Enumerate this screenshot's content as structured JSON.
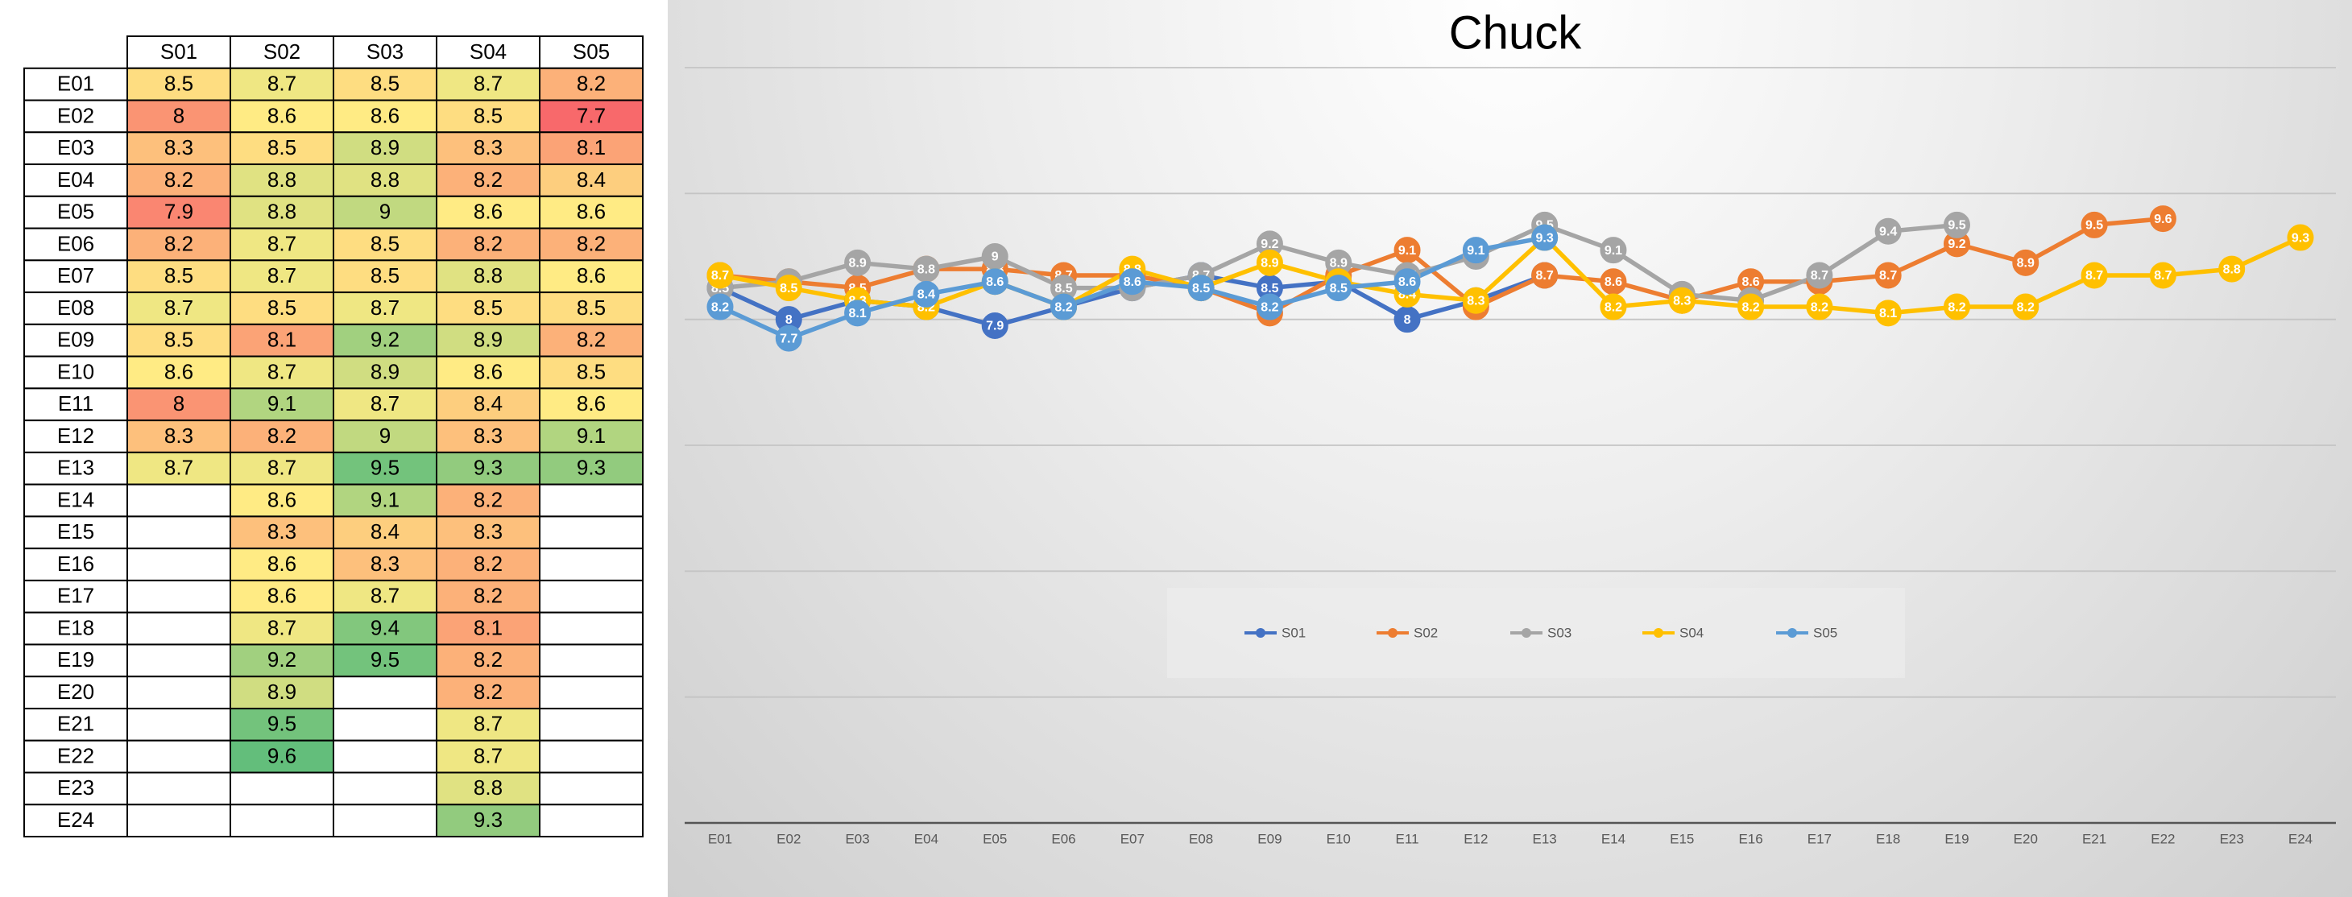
{
  "table": {
    "color_scale": [
      "#f8696b",
      "#ffeb84",
      "#63be7b"
    ]
  },
  "chart_data": {
    "type": "line",
    "title": "Chuck",
    "categories": [
      "E01",
      "E02",
      "E03",
      "E04",
      "E05",
      "E06",
      "E07",
      "E08",
      "E09",
      "E10",
      "E11",
      "E12",
      "E13",
      "E14",
      "E15",
      "E16",
      "E17",
      "E18",
      "E19",
      "E20",
      "E21",
      "E22",
      "E23",
      "E24"
    ],
    "series": [
      {
        "name": "S01",
        "color": "#4472c4",
        "values": [
          8.5,
          8,
          8.3,
          8.2,
          7.9,
          8.2,
          8.5,
          8.7,
          8.5,
          8.6,
          8,
          8.3,
          8.7,
          null,
          null,
          null,
          null,
          null,
          null,
          null,
          null,
          null,
          null,
          null
        ]
      },
      {
        "name": "S02",
        "color": "#ed7d31",
        "values": [
          8.7,
          8.6,
          8.5,
          8.8,
          8.8,
          8.7,
          8.7,
          8.5,
          8.1,
          8.7,
          9.1,
          8.2,
          8.7,
          8.6,
          8.3,
          8.6,
          8.6,
          8.7,
          9.2,
          8.9,
          9.5,
          9.6,
          null,
          null
        ]
      },
      {
        "name": "S03",
        "color": "#a5a5a5",
        "values": [
          8.5,
          8.6,
          8.9,
          8.8,
          9,
          8.5,
          8.5,
          8.7,
          9.2,
          8.9,
          8.7,
          9,
          9.5,
          9.1,
          8.4,
          8.3,
          8.7,
          9.4,
          9.5,
          null,
          null,
          null,
          null,
          null
        ]
      },
      {
        "name": "S04",
        "color": "#ffc000",
        "values": [
          8.7,
          8.5,
          8.3,
          8.2,
          8.6,
          8.2,
          8.8,
          8.5,
          8.9,
          8.6,
          8.4,
          8.3,
          9.3,
          8.2,
          8.3,
          8.2,
          8.2,
          8.1,
          8.2,
          8.2,
          8.7,
          8.7,
          8.8,
          9.3
        ]
      },
      {
        "name": "S05",
        "color": "#5b9bd5",
        "values": [
          8.2,
          7.7,
          8.1,
          8.4,
          8.6,
          8.2,
          8.6,
          8.5,
          8.2,
          8.5,
          8.6,
          9.1,
          9.3,
          null,
          null,
          null,
          null,
          null,
          null,
          null,
          null,
          null,
          null,
          null
        ]
      }
    ],
    "ylim": [
      0,
      12
    ],
    "yticks": [
      0,
      2,
      4,
      6,
      8,
      10,
      12
    ],
    "grid": true,
    "legend": "center"
  }
}
